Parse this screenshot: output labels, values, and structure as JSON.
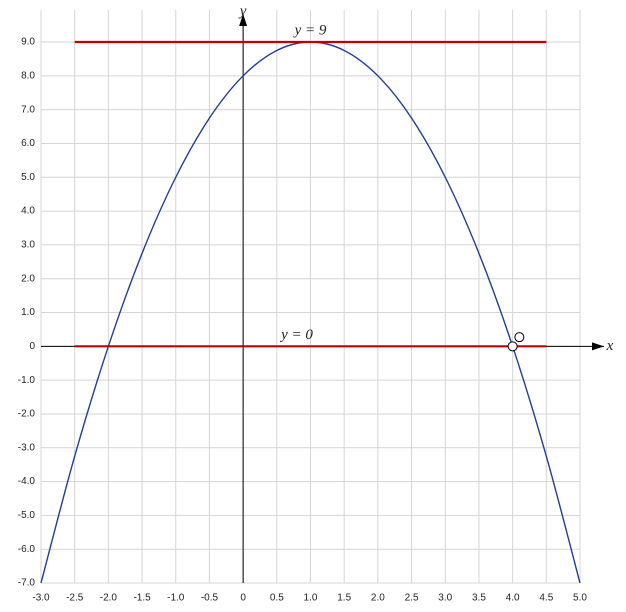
{
  "chart_data": {
    "type": "line",
    "x_label": "x",
    "y_label": "y",
    "xlim": [
      -3,
      5
    ],
    "ylim": [
      -7,
      9
    ],
    "grid": true,
    "xticks": [
      {
        "value": -3,
        "label": "-3.0"
      },
      -2.5,
      {
        "value": -2,
        "label": "-2.0"
      },
      -1.5,
      {
        "value": -1,
        "label": "-1.0"
      },
      -0.5,
      0,
      0.5,
      {
        "value": 1,
        "label": "1.0"
      },
      1.5,
      {
        "value": 2,
        "label": "2.0"
      },
      2.5,
      {
        "value": 3,
        "label": "3.0"
      },
      3.5,
      {
        "value": 4,
        "label": "4.0"
      },
      4.5,
      {
        "value": 5,
        "label": "5.0"
      }
    ],
    "yticks": [
      {
        "value": -7,
        "label": "-7.0"
      },
      {
        "value": -6,
        "label": "-6.0"
      },
      {
        "value": -5,
        "label": "-5.0"
      },
      {
        "value": -4,
        "label": "-4.0"
      },
      {
        "value": -3,
        "label": "-3.0"
      },
      {
        "value": -2,
        "label": "-2.0"
      },
      {
        "value": -1,
        "label": "-1.0"
      },
      0,
      {
        "value": 1,
        "label": "1.0"
      },
      {
        "value": 2,
        "label": "2.0"
      },
      {
        "value": 3,
        "label": "3.0"
      },
      {
        "value": 4,
        "label": "4.0"
      },
      {
        "value": 5,
        "label": "5.0"
      },
      {
        "value": 6,
        "label": "6.0"
      },
      {
        "value": 7,
        "label": "7.0"
      },
      {
        "value": 8,
        "label": "8.0"
      },
      {
        "value": 9,
        "label": "9.0"
      }
    ],
    "series": [
      {
        "color": "#1f3f8f",
        "x": [
          -3,
          -2.5,
          -2,
          -1.5,
          -1,
          -0.5,
          0,
          0.5,
          1,
          1.5,
          2,
          2.5,
          3,
          3.5,
          4,
          4.5,
          5
        ],
        "values": [
          -7,
          -3.25,
          0,
          2.75,
          5,
          6.75,
          8,
          8.75,
          9,
          8.75,
          8,
          6.75,
          5,
          2.75,
          0,
          -3.25,
          -7
        ],
        "smooth": true
      },
      {
        "color": "#c00000",
        "x": [
          -2.5,
          4.5
        ],
        "values": [
          9,
          9
        ]
      },
      {
        "color": "#c00000",
        "x": [
          -2.5,
          4.5
        ],
        "values": [
          0,
          0
        ]
      }
    ],
    "points": {
      "x": [
        4,
        4.1
      ],
      "values": [
        0,
        0.27
      ]
    },
    "annotations": [
      {
        "text": "y = 9",
        "x": 1,
        "y": 9
      },
      {
        "text": "y = 0",
        "x": 0.8,
        "y": 0
      }
    ]
  }
}
